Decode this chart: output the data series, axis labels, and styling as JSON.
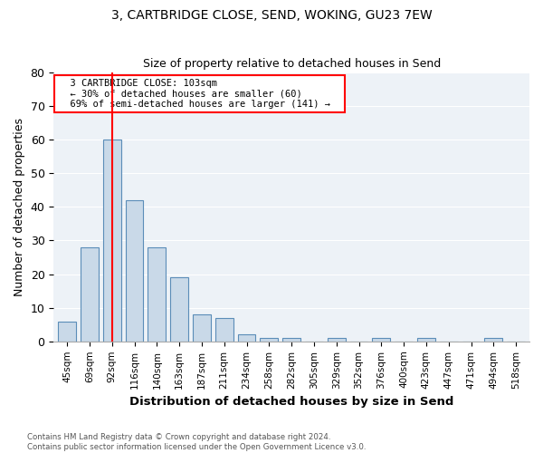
{
  "title": "3, CARTBRIDGE CLOSE, SEND, WOKING, GU23 7EW",
  "subtitle": "Size of property relative to detached houses in Send",
  "xlabel": "Distribution of detached houses by size in Send",
  "ylabel": "Number of detached properties",
  "bins": [
    "45sqm",
    "69sqm",
    "92sqm",
    "116sqm",
    "140sqm",
    "163sqm",
    "187sqm",
    "211sqm",
    "234sqm",
    "258sqm",
    "282sqm",
    "305sqm",
    "329sqm",
    "352sqm",
    "376sqm",
    "400sqm",
    "423sqm",
    "447sqm",
    "471sqm",
    "494sqm",
    "518sqm"
  ],
  "values": [
    6,
    28,
    60,
    42,
    28,
    19,
    8,
    7,
    2,
    1,
    1,
    0,
    1,
    0,
    1,
    0,
    1,
    0,
    0,
    1,
    0
  ],
  "bar_color": "#c9d9e8",
  "bar_edge_color": "#5b8db8",
  "vline_x": 2,
  "annotation_line1": "3 CARTBRIDGE CLOSE: 103sqm",
  "annotation_line2": "← 30% of detached houses are smaller (60)",
  "annotation_line3": "69% of semi-detached houses are larger (141) →",
  "ylim": [
    0,
    80
  ],
  "yticks": [
    0,
    10,
    20,
    30,
    40,
    50,
    60,
    70,
    80
  ],
  "footer1": "Contains HM Land Registry data © Crown copyright and database right 2024.",
  "footer2": "Contains public sector information licensed under the Open Government Licence v3.0.",
  "bg_color": "#edf2f7"
}
